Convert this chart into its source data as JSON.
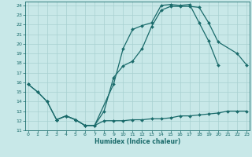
{
  "xlabel": "Humidex (Indice chaleur)",
  "background_color": "#c8e8e8",
  "grid_color": "#a8d0d0",
  "line_color": "#1a6b6b",
  "curve1_x": [
    0,
    1,
    2,
    3,
    4,
    5,
    6,
    7,
    9,
    10,
    11,
    12,
    13,
    14,
    15,
    16,
    17,
    18,
    19,
    20
  ],
  "curve1_y": [
    15.8,
    15.0,
    14.0,
    12.1,
    12.5,
    12.1,
    11.5,
    11.5,
    15.8,
    19.5,
    21.5,
    21.9,
    22.2,
    24.0,
    24.1,
    24.0,
    24.1,
    22.2,
    20.3,
    17.8
  ],
  "curve2_x": [
    0,
    1,
    2,
    3,
    4,
    5,
    6,
    7,
    8,
    9,
    10,
    11,
    12,
    13,
    14,
    15,
    16,
    17,
    18,
    19,
    20,
    22,
    23
  ],
  "curve2_y": [
    15.8,
    15.0,
    14.0,
    12.1,
    12.5,
    12.1,
    11.5,
    11.5,
    13.0,
    16.5,
    17.7,
    18.2,
    19.5,
    21.8,
    23.5,
    23.9,
    23.9,
    23.9,
    23.8,
    22.2,
    20.2,
    19.0,
    17.8
  ],
  "curve3_x": [
    3,
    4,
    5,
    6,
    7,
    8,
    9,
    10,
    11,
    12,
    13,
    14,
    15,
    16,
    17,
    18,
    19,
    20,
    21,
    22,
    23
  ],
  "curve3_y": [
    12.1,
    12.5,
    12.1,
    11.5,
    11.5,
    12.0,
    12.0,
    12.0,
    12.1,
    12.1,
    12.2,
    12.2,
    12.3,
    12.5,
    12.5,
    12.6,
    12.7,
    12.8,
    13.0,
    13.0,
    13.0
  ],
  "xlim": [
    -0.3,
    23.3
  ],
  "ylim": [
    11.0,
    24.4
  ],
  "xticks": [
    0,
    1,
    2,
    3,
    4,
    5,
    6,
    7,
    8,
    9,
    10,
    11,
    12,
    13,
    14,
    15,
    16,
    17,
    18,
    19,
    20,
    21,
    22,
    23
  ],
  "yticks": [
    11,
    12,
    13,
    14,
    15,
    16,
    17,
    18,
    19,
    20,
    21,
    22,
    23,
    24
  ]
}
